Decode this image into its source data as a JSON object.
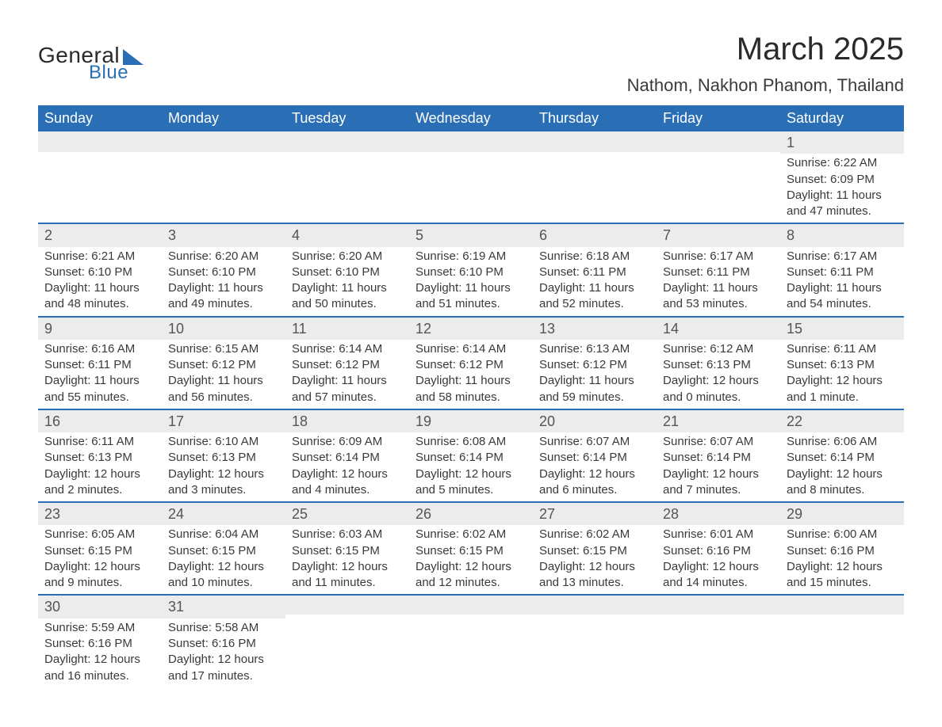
{
  "logo": {
    "word1": "General",
    "word2": "Blue"
  },
  "title": "March 2025",
  "location": "Nathom, Nakhon Phanom, Thailand",
  "colors": {
    "header_bg": "#2a6fb5",
    "header_text": "#ffffff",
    "daynum_bg": "#ececec",
    "row_border": "#2a6fb5",
    "body_text": "#3a3a3a",
    "page_bg": "#ffffff"
  },
  "weekdays": [
    "Sunday",
    "Monday",
    "Tuesday",
    "Wednesday",
    "Thursday",
    "Friday",
    "Saturday"
  ],
  "weeks": [
    [
      null,
      null,
      null,
      null,
      null,
      null,
      {
        "n": "1",
        "sr": "6:22 AM",
        "ss": "6:09 PM",
        "dl": "11 hours and 47 minutes."
      }
    ],
    [
      {
        "n": "2",
        "sr": "6:21 AM",
        "ss": "6:10 PM",
        "dl": "11 hours and 48 minutes."
      },
      {
        "n": "3",
        "sr": "6:20 AM",
        "ss": "6:10 PM",
        "dl": "11 hours and 49 minutes."
      },
      {
        "n": "4",
        "sr": "6:20 AM",
        "ss": "6:10 PM",
        "dl": "11 hours and 50 minutes."
      },
      {
        "n": "5",
        "sr": "6:19 AM",
        "ss": "6:10 PM",
        "dl": "11 hours and 51 minutes."
      },
      {
        "n": "6",
        "sr": "6:18 AM",
        "ss": "6:11 PM",
        "dl": "11 hours and 52 minutes."
      },
      {
        "n": "7",
        "sr": "6:17 AM",
        "ss": "6:11 PM",
        "dl": "11 hours and 53 minutes."
      },
      {
        "n": "8",
        "sr": "6:17 AM",
        "ss": "6:11 PM",
        "dl": "11 hours and 54 minutes."
      }
    ],
    [
      {
        "n": "9",
        "sr": "6:16 AM",
        "ss": "6:11 PM",
        "dl": "11 hours and 55 minutes."
      },
      {
        "n": "10",
        "sr": "6:15 AM",
        "ss": "6:12 PM",
        "dl": "11 hours and 56 minutes."
      },
      {
        "n": "11",
        "sr": "6:14 AM",
        "ss": "6:12 PM",
        "dl": "11 hours and 57 minutes."
      },
      {
        "n": "12",
        "sr": "6:14 AM",
        "ss": "6:12 PM",
        "dl": "11 hours and 58 minutes."
      },
      {
        "n": "13",
        "sr": "6:13 AM",
        "ss": "6:12 PM",
        "dl": "11 hours and 59 minutes."
      },
      {
        "n": "14",
        "sr": "6:12 AM",
        "ss": "6:13 PM",
        "dl": "12 hours and 0 minutes."
      },
      {
        "n": "15",
        "sr": "6:11 AM",
        "ss": "6:13 PM",
        "dl": "12 hours and 1 minute."
      }
    ],
    [
      {
        "n": "16",
        "sr": "6:11 AM",
        "ss": "6:13 PM",
        "dl": "12 hours and 2 minutes."
      },
      {
        "n": "17",
        "sr": "6:10 AM",
        "ss": "6:13 PM",
        "dl": "12 hours and 3 minutes."
      },
      {
        "n": "18",
        "sr": "6:09 AM",
        "ss": "6:14 PM",
        "dl": "12 hours and 4 minutes."
      },
      {
        "n": "19",
        "sr": "6:08 AM",
        "ss": "6:14 PM",
        "dl": "12 hours and 5 minutes."
      },
      {
        "n": "20",
        "sr": "6:07 AM",
        "ss": "6:14 PM",
        "dl": "12 hours and 6 minutes."
      },
      {
        "n": "21",
        "sr": "6:07 AM",
        "ss": "6:14 PM",
        "dl": "12 hours and 7 minutes."
      },
      {
        "n": "22",
        "sr": "6:06 AM",
        "ss": "6:14 PM",
        "dl": "12 hours and 8 minutes."
      }
    ],
    [
      {
        "n": "23",
        "sr": "6:05 AM",
        "ss": "6:15 PM",
        "dl": "12 hours and 9 minutes."
      },
      {
        "n": "24",
        "sr": "6:04 AM",
        "ss": "6:15 PM",
        "dl": "12 hours and 10 minutes."
      },
      {
        "n": "25",
        "sr": "6:03 AM",
        "ss": "6:15 PM",
        "dl": "12 hours and 11 minutes."
      },
      {
        "n": "26",
        "sr": "6:02 AM",
        "ss": "6:15 PM",
        "dl": "12 hours and 12 minutes."
      },
      {
        "n": "27",
        "sr": "6:02 AM",
        "ss": "6:15 PM",
        "dl": "12 hours and 13 minutes."
      },
      {
        "n": "28",
        "sr": "6:01 AM",
        "ss": "6:16 PM",
        "dl": "12 hours and 14 minutes."
      },
      {
        "n": "29",
        "sr": "6:00 AM",
        "ss": "6:16 PM",
        "dl": "12 hours and 15 minutes."
      }
    ],
    [
      {
        "n": "30",
        "sr": "5:59 AM",
        "ss": "6:16 PM",
        "dl": "12 hours and 16 minutes."
      },
      {
        "n": "31",
        "sr": "5:58 AM",
        "ss": "6:16 PM",
        "dl": "12 hours and 17 minutes."
      },
      null,
      null,
      null,
      null,
      null
    ]
  ],
  "labels": {
    "sunrise": "Sunrise:",
    "sunset": "Sunset:",
    "daylight": "Daylight:"
  }
}
